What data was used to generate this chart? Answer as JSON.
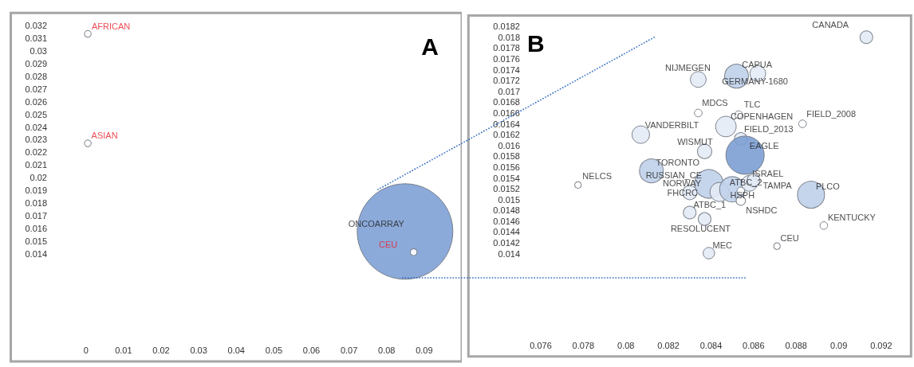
{
  "chart_data": [
    {
      "type": "bubble",
      "title": "A",
      "grid": false,
      "xlim": [
        -0.02,
        0.1
      ],
      "ylim": [
        0.0055,
        0.033
      ],
      "xticks": [
        0,
        0.01,
        0.02,
        0.03,
        0.04,
        0.05,
        0.06,
        0.07,
        0.08,
        0.09
      ],
      "yticks": [
        0.014,
        0.015,
        0.016,
        0.017,
        0.018,
        0.019,
        0.02,
        0.021,
        0.022,
        0.023,
        0.024,
        0.025,
        0.026,
        0.027,
        0.028,
        0.029,
        0.03,
        0.031,
        0.032
      ],
      "series": [
        {
          "x": [
            0.0849
          ],
          "values": [
            0.01575
          ],
          "sizes": [
            1
          ],
          "colors": [
            "#7ea1d6"
          ]
        },
        {
          "x": [
            0.0005,
            0.0005,
            0.0872
          ],
          "values": [
            0.03135,
            0.02271,
            0.01412
          ],
          "sizes": [
            0.005,
            0.005,
            0.005
          ],
          "colors": [
            "#ffffff",
            "#ffffff",
            "#ffffff"
          ]
        }
      ],
      "annotations": [
        {
          "text": "ONCOARRAY",
          "x": 0.0849,
          "y": 0.01575
        },
        {
          "text": "AFRICAN",
          "x": 0.0005,
          "y": 0.03135
        },
        {
          "text": "ASIAN",
          "x": 0.0005,
          "y": 0.02271
        },
        {
          "text": "CEU",
          "x": 0.0872,
          "y": 0.01412
        }
      ]
    },
    {
      "type": "bubble",
      "title": "B",
      "grid": false,
      "xlim": [
        0.0726,
        0.0934
      ],
      "ylim": [
        0.0121,
        0.0184
      ],
      "xticks": [
        0.076,
        0.078,
        0.08,
        0.082,
        0.084,
        0.086,
        0.088,
        0.09,
        0.092
      ],
      "yticks": [
        0.014,
        0.0142,
        0.0144,
        0.0146,
        0.0148,
        0.015,
        0.0152,
        0.0154,
        0.0156,
        0.0158,
        0.016,
        0.0162,
        0.0164,
        0.0166,
        0.0168,
        0.017,
        0.0172,
        0.0174,
        0.0176,
        0.0178,
        0.018,
        0.0182
      ],
      "series": [
        {
          "x": [
            0.0913,
            0.0834,
            0.0852,
            0.0862,
            0.0834,
            0.0853,
            0.0847,
            0.0883,
            0.0807,
            0.0854,
            0.0837,
            0.0856,
            0.0812,
            0.0839,
            0.0844,
            0.083,
            0.085,
            0.0858,
            0.086,
            0.0854,
            0.0854,
            0.07775,
            0.0887,
            0.083,
            0.0837,
            0.0893,
            0.0871,
            0.0839
          ],
          "values": [
            0.018,
            0.01722,
            0.01728,
            0.01733,
            0.0166,
            0.01657,
            0.01635,
            0.0164,
            0.0162,
            0.01612,
            0.01589,
            0.01582,
            0.01553,
            0.01529,
            0.01514,
            0.01513,
            0.01519,
            0.0153,
            0.01536,
            0.01516,
            0.01498,
            0.01527,
            0.01509,
            0.01476,
            0.01464,
            0.01452,
            0.01414,
            0.01401
          ],
          "sizes": [
            0.11,
            0.17,
            0.39,
            0.17,
            0.04,
            0.04,
            0.29,
            0.04,
            0.21,
            0.11,
            0.14,
            1,
            0.39,
            0.56,
            0.25,
            0.14,
            0.44,
            0.17,
            0.11,
            0.04,
            0.06,
            0.03,
            0.5,
            0.11,
            0.11,
            0.04,
            0.03,
            0.09
          ],
          "colors": [
            "#e3ebf6",
            "#e3ebf6",
            "#bfd0ea",
            "#e3ebf6",
            "#ffffff",
            "#ffffff",
            "#e3ebf6",
            "#ffffff",
            "#e3ebf6",
            "#e3ebf6",
            "#e3ebf6",
            "#7c9fd3",
            "#bfd0ea",
            "#bfd0ea",
            "#e3ebf6",
            "#e3ebf6",
            "#bfd0ea",
            "#e3ebf6",
            "#e3ebf6",
            "#ffffff",
            "#ffffff",
            "#ffffff",
            "#bfd0ea",
            "#e3ebf6",
            "#e3ebf6",
            "#ffffff",
            "#ffffff",
            "#e3ebf6"
          ]
        }
      ],
      "annotations": [
        {
          "text": "CANADA",
          "x": 0.0913,
          "y": 0.018
        },
        {
          "text": "NIJMEGEN",
          "x": 0.0834,
          "y": 0.01722
        },
        {
          "text": "GERMANY-1680",
          "x": 0.0852,
          "y": 0.01728
        },
        {
          "text": "CAPUA",
          "x": 0.0862,
          "y": 0.01733
        },
        {
          "text": "MDCS",
          "x": 0.0834,
          "y": 0.0166
        },
        {
          "text": "TLC",
          "x": 0.0853,
          "y": 0.01657
        },
        {
          "text": "COPENHAGEN",
          "x": 0.0847,
          "y": 0.01635
        },
        {
          "text": "FIELD_2008",
          "x": 0.0883,
          "y": 0.0164
        },
        {
          "text": "VANDERBILT",
          "x": 0.0807,
          "y": 0.0162
        },
        {
          "text": "FIELD_2013",
          "x": 0.0854,
          "y": 0.01612
        },
        {
          "text": "WISMUT",
          "x": 0.0837,
          "y": 0.01589
        },
        {
          "text": "EAGLE",
          "x": 0.0856,
          "y": 0.01582
        },
        {
          "text": "TORONTO",
          "x": 0.0812,
          "y": 0.01553
        },
        {
          "text": "RUSSIAN_CE",
          "x": 0.0839,
          "y": 0.01529
        },
        {
          "text": "NORWAY",
          "x": 0.0844,
          "y": 0.01514
        },
        {
          "text": "FHCRC",
          "x": 0.083,
          "y": 0.01513
        },
        {
          "text": "ATBC_2",
          "x": 0.085,
          "y": 0.01519
        },
        {
          "text": "TAMPA",
          "x": 0.0858,
          "y": 0.0153
        },
        {
          "text": "ISRAEL",
          "x": 0.086,
          "y": 0.01536
        },
        {
          "text": "HSPH",
          "x": 0.0854,
          "y": 0.01516
        },
        {
          "text": "NSHDC",
          "x": 0.0854,
          "y": 0.01498
        },
        {
          "text": "NELCS",
          "x": 0.07775,
          "y": 0.01527
        },
        {
          "text": "PLCO",
          "x": 0.0887,
          "y": 0.01509
        },
        {
          "text": "ATBC_1",
          "x": 0.083,
          "y": 0.01476
        },
        {
          "text": "RESOLUCENT",
          "x": 0.0837,
          "y": 0.01464
        },
        {
          "text": "KENTUCKY",
          "x": 0.0893,
          "y": 0.01452
        },
        {
          "text": "CEU",
          "x": 0.0871,
          "y": 0.01414
        },
        {
          "text": "MEC",
          "x": 0.0839,
          "y": 0.01401
        }
      ]
    }
  ]
}
